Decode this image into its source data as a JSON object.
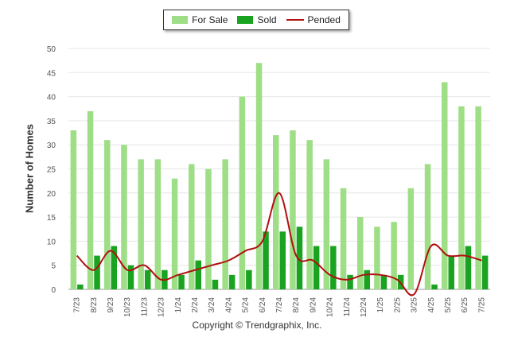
{
  "chart_data": {
    "type": "bar",
    "categories": [
      "7/23",
      "8/23",
      "9/23",
      "10/23",
      "11/23",
      "12/23",
      "1/24",
      "2/24",
      "3/24",
      "4/24",
      "5/24",
      "6/24",
      "7/24",
      "8/24",
      "9/24",
      "10/24",
      "11/24",
      "12/24",
      "1/25",
      "2/25",
      "3/25",
      "4/25",
      "5/25",
      "6/25",
      "7/25"
    ],
    "series": [
      {
        "name": "For Sale",
        "type": "bar",
        "color": "#9ede86",
        "values": [
          33,
          37,
          31,
          30,
          27,
          27,
          23,
          26,
          25,
          27,
          40,
          47,
          32,
          33,
          31,
          27,
          21,
          15,
          13,
          14,
          21,
          26,
          43,
          38,
          38
        ]
      },
      {
        "name": "Sold",
        "type": "bar",
        "color": "#1aa321",
        "values": [
          1,
          7,
          9,
          5,
          4,
          4,
          3,
          6,
          2,
          3,
          4,
          12,
          12,
          13,
          9,
          9,
          3,
          4,
          3,
          3,
          0,
          1,
          7,
          9,
          7
        ]
      },
      {
        "name": "Pended",
        "type": "line",
        "color": "#b01010",
        "values": [
          7,
          4,
          8,
          4,
          5,
          2,
          3,
          4,
          5,
          6,
          8,
          10,
          20,
          7,
          6,
          3,
          2,
          3,
          3,
          2,
          -1,
          9,
          7,
          7,
          6
        ]
      }
    ],
    "ylabel": "Number of Homes",
    "xlabel": "",
    "ylim": [
      0,
      50
    ],
    "yticks": [
      0,
      5,
      10,
      15,
      20,
      25,
      30,
      35,
      40,
      45,
      50
    ],
    "legend_position": "top-center",
    "grid": true
  },
  "footer": {
    "copyright": "Copyright © Trendgraphix, Inc."
  }
}
